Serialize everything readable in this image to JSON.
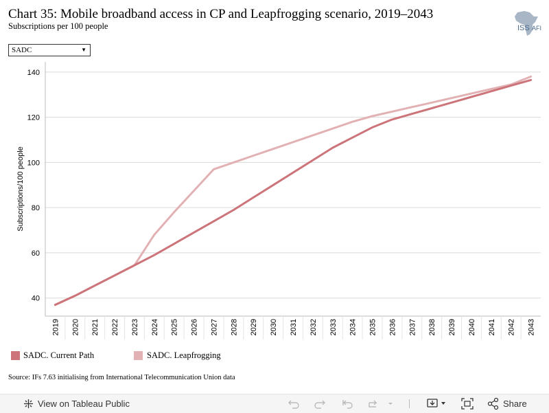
{
  "header": {
    "title": "Chart 35: Mobile broadband access in CP and Leapfrogging scenario, 2019–2043",
    "subtitle": "Subscriptions per 100 people",
    "logo_text": "ISS",
    "logo_suffix": "AFI"
  },
  "filter": {
    "selected": "SADC"
  },
  "chart_data": {
    "type": "line",
    "x": [
      2019,
      2020,
      2021,
      2022,
      2023,
      2024,
      2025,
      2026,
      2027,
      2028,
      2029,
      2030,
      2031,
      2032,
      2033,
      2034,
      2035,
      2036,
      2037,
      2038,
      2039,
      2040,
      2041,
      2042,
      2043
    ],
    "series": [
      {
        "name": "SADC. Current Path",
        "color": "#cc7479",
        "values": [
          37,
          41,
          45.5,
          50,
          54.5,
          59,
          64,
          69,
          74,
          79,
          84.5,
          90,
          95.5,
          101,
          106.5,
          111,
          115.5,
          119,
          121.5,
          124,
          126.5,
          129,
          131.5,
          134,
          136.5
        ]
      },
      {
        "name": "SADC. Leapfrogging",
        "color": "#e2b1b3",
        "values": [
          37,
          41,
          45.5,
          50,
          54.5,
          68,
          78,
          87.5,
          97,
          100,
          103,
          106,
          109,
          112,
          115,
          118,
          120.5,
          122.5,
          124.5,
          126.5,
          128.5,
          130.5,
          132.5,
          134.5,
          138
        ]
      }
    ],
    "ylabel": "Subscriptions/100 people",
    "xlabel": "",
    "yticks": [
      40,
      60,
      80,
      100,
      120,
      140
    ],
    "ylim": [
      32,
      143
    ],
    "grid": true,
    "legend": "bottom-left"
  },
  "source": "Source: IFs 7.63 initialising from International Telecommunication Union data",
  "toolbar": {
    "view_label": "View on Tableau Public",
    "share_label": "Share"
  }
}
